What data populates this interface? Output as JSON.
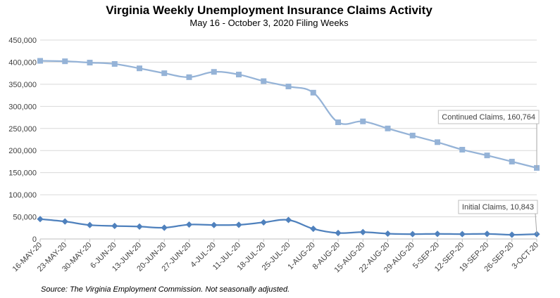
{
  "chart_data": {
    "type": "line",
    "title": "Virginia Weekly Unemployment Insurance Claims Activity",
    "subtitle": "May 16 - October 3, 2020 Filing Weeks",
    "source": "Source: The Virginia Employment Commission. Not seasonally adjusted.",
    "xlabel": "",
    "ylabel": "",
    "ylim": [
      0,
      450000
    ],
    "yticks": [
      0,
      50000,
      100000,
      150000,
      200000,
      250000,
      300000,
      350000,
      400000,
      450000
    ],
    "ytick_labels": [
      "0",
      "50,000",
      "100,000",
      "150,000",
      "200,000",
      "250,000",
      "300,000",
      "350,000",
      "400,000",
      "450,000"
    ],
    "grid": true,
    "legend": "none",
    "categories": [
      "16-MAY-20",
      "23-MAY-20",
      "30-MAY-20",
      "6-JUN-20",
      "13-JUN-20",
      "20-JUN-20",
      "27-JUN-20",
      "4-JUL-20",
      "11-JUL-20",
      "18-JUL-20",
      "25-JUL-20",
      "1-AUG-20",
      "8-AUG-20",
      "15-AUG-20",
      "22-AUG-20",
      "29-AUG-20",
      "5-SEP-20",
      "12-SEP-20",
      "19-SEP-20",
      "26-SEP-20",
      "3-OCT-20"
    ],
    "series": [
      {
        "name": "Continued Claims",
        "color": "#95b3d7",
        "marker": "square",
        "values": [
          403000,
          402000,
          399000,
          396000,
          386000,
          375000,
          366000,
          378000,
          372000,
          357000,
          345000,
          331000,
          264000,
          266000,
          250000,
          234000,
          219000,
          202000,
          189000,
          175000,
          160764
        ],
        "label": "Continued Claims, 160,764"
      },
      {
        "name": "Initial Claims",
        "color": "#4f81bd",
        "marker": "diamond",
        "values": [
          45000,
          39500,
          31500,
          29500,
          28000,
          25500,
          32500,
          31500,
          32000,
          37500,
          43000,
          23000,
          13500,
          15500,
          12000,
          11000,
          11500,
          11000,
          11500,
          9500,
          10843
        ],
        "label": "Initial Claims, 10,843"
      }
    ]
  }
}
